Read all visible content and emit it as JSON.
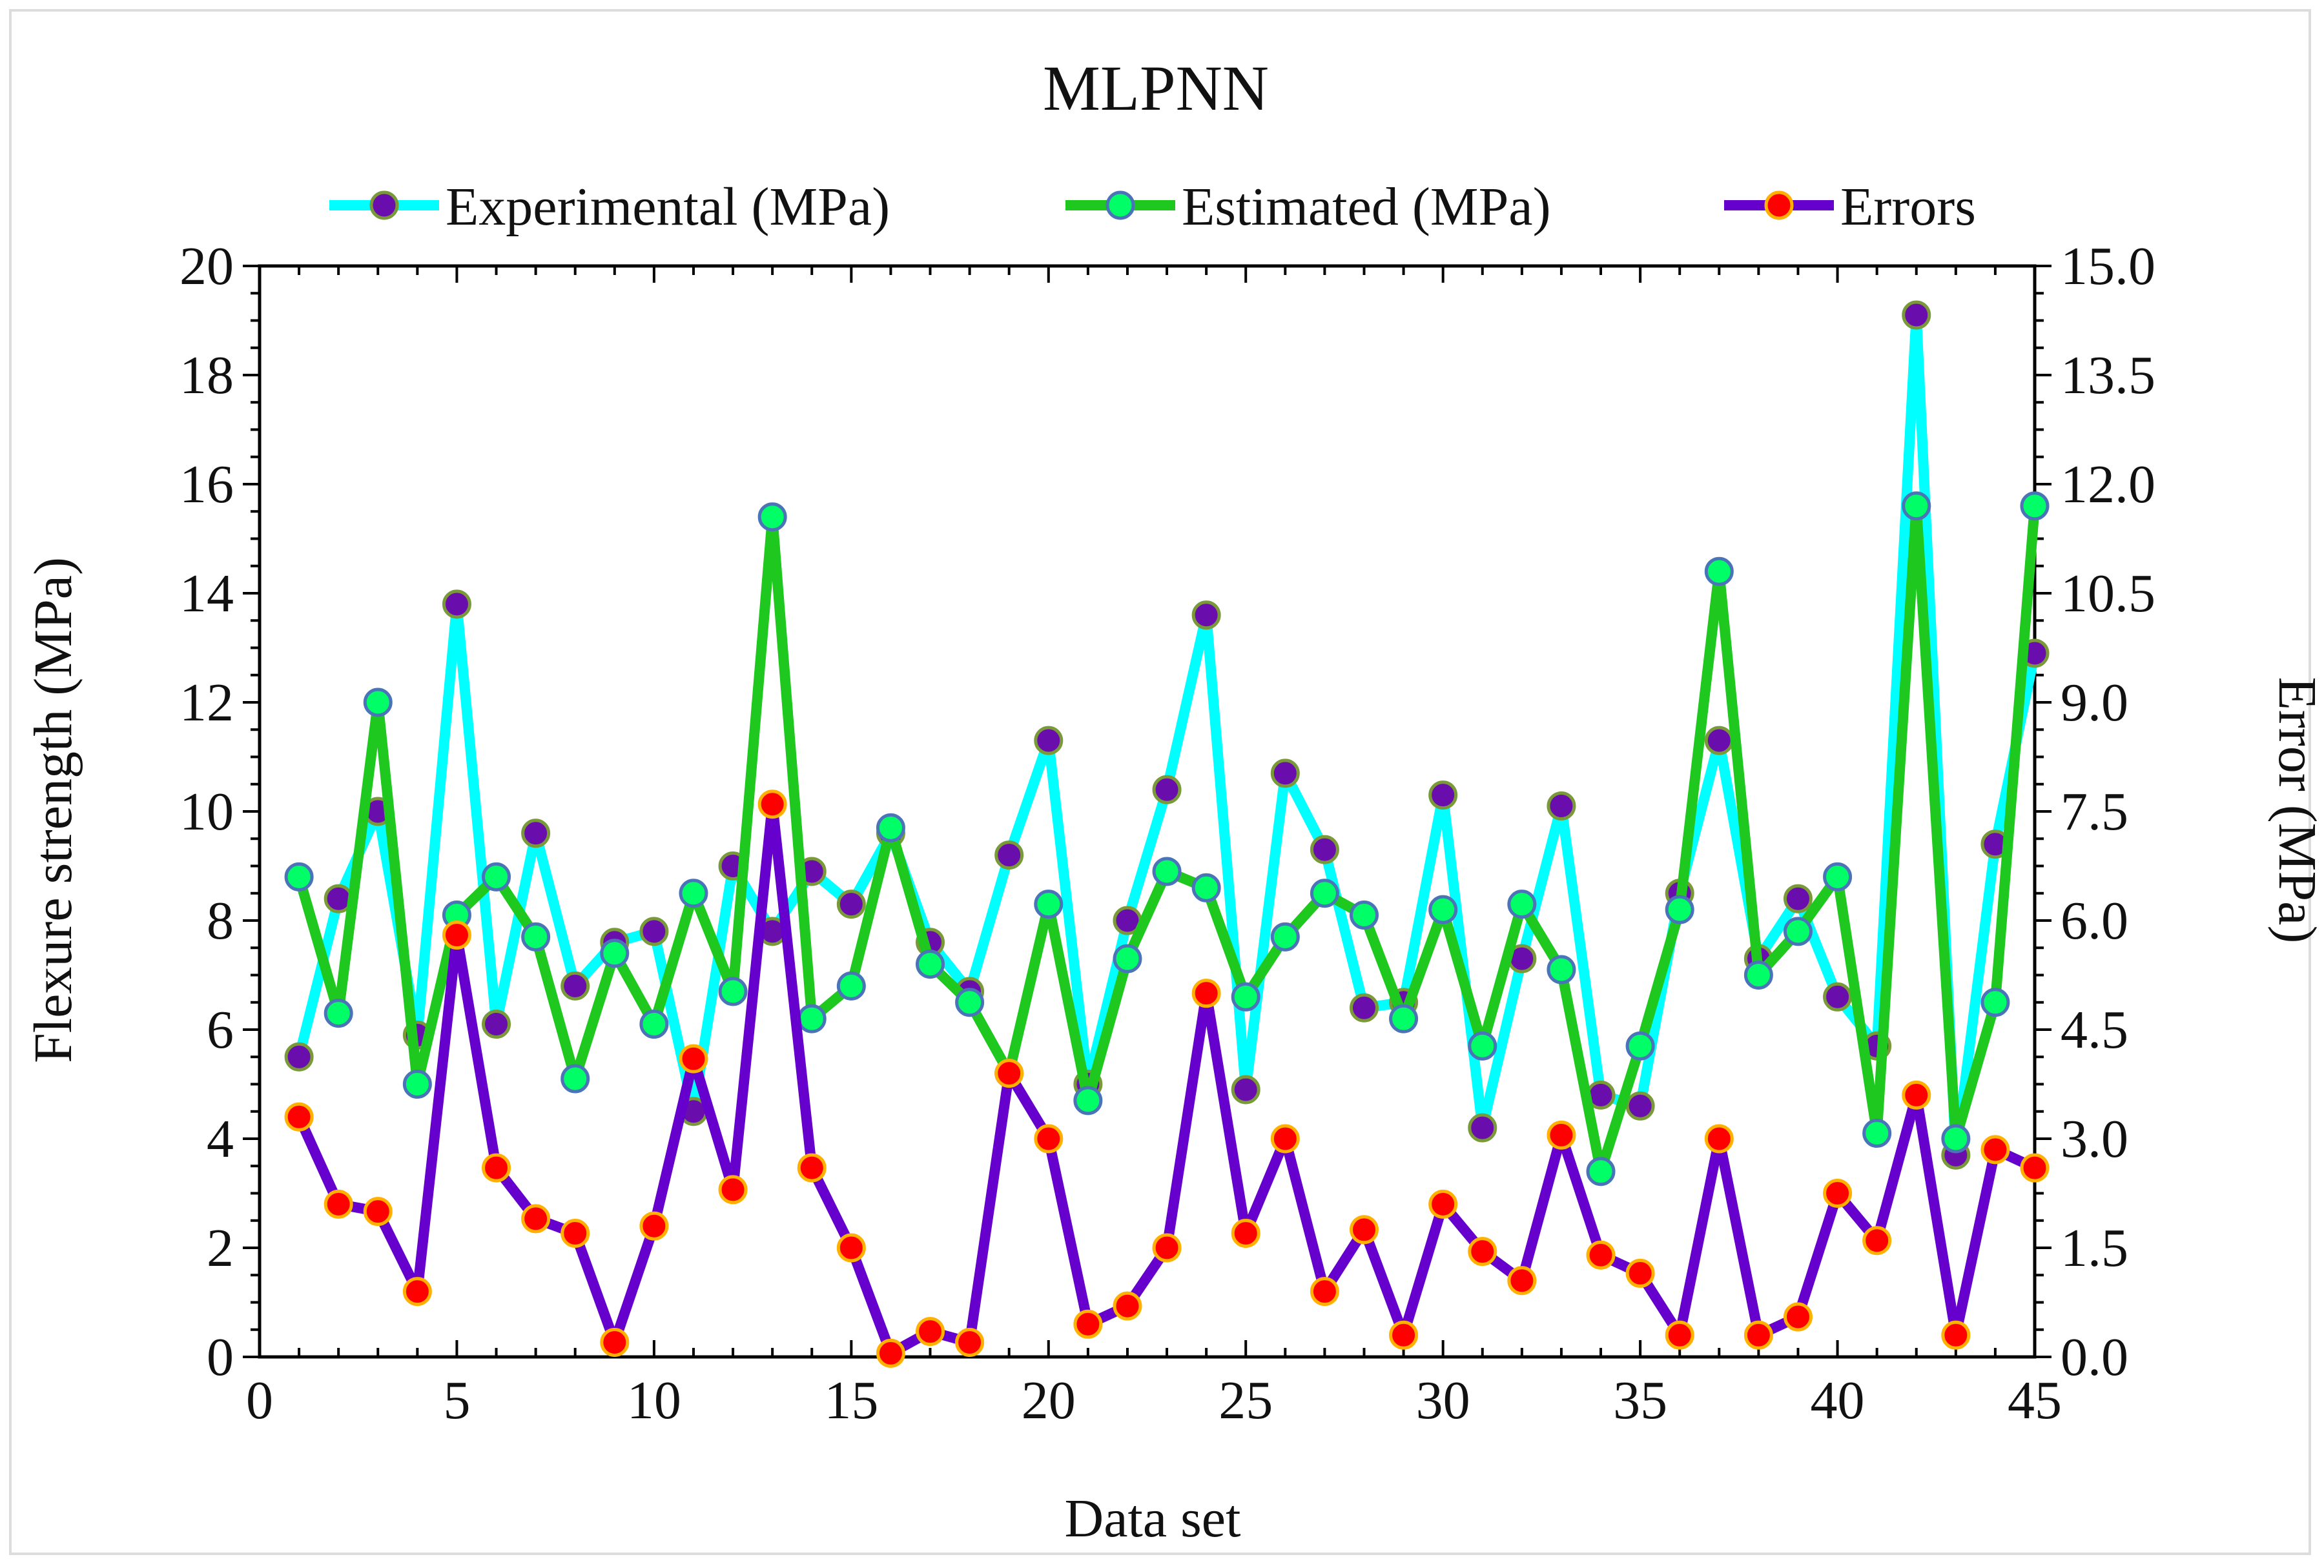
{
  "chart_data": {
    "type": "line",
    "title": "MLPNN",
    "xlabel": "Data set",
    "ylabel": "Flexure strength (MPa)",
    "y2label": "Error (MPa)",
    "xlim": [
      0,
      45
    ],
    "ylim": [
      0,
      20
    ],
    "y2lim": [
      0,
      15
    ],
    "x_ticks": [
      "0",
      "5",
      "10",
      "15",
      "20",
      "25",
      "30",
      "35",
      "40",
      "45"
    ],
    "y_ticks": [
      "0",
      "2",
      "4",
      "6",
      "8",
      "10",
      "12",
      "14",
      "16",
      "18",
      "20"
    ],
    "y2_ticks": [
      "0.0",
      "1.5",
      "3.0",
      "4.5",
      "6.0",
      "7.5",
      "9.0",
      "10.5",
      "12.0",
      "13.5",
      "15.0"
    ],
    "legend_position": "top",
    "x": [
      1,
      2,
      3,
      4,
      5,
      6,
      7,
      8,
      9,
      10,
      11,
      12,
      13,
      14,
      15,
      16,
      17,
      18,
      19,
      20,
      21,
      22,
      23,
      24,
      25,
      26,
      27,
      28,
      29,
      30,
      31,
      32,
      33,
      34,
      35,
      36,
      37,
      38,
      39,
      40,
      41,
      42,
      43,
      44,
      45
    ],
    "series": [
      {
        "name": "Experimental (MPa)",
        "axis": "left",
        "line_color": "#00ffff",
        "marker_fill": "#6a0dad",
        "marker_edge": "#7a9a3a",
        "values": [
          5.5,
          8.4,
          10.0,
          5.9,
          13.8,
          6.1,
          9.6,
          6.8,
          7.6,
          7.8,
          4.5,
          9.0,
          7.8,
          8.9,
          8.3,
          9.6,
          7.6,
          6.7,
          9.2,
          11.3,
          5.0,
          8.0,
          10.4,
          13.6,
          4.9,
          10.7,
          9.3,
          6.4,
          6.5,
          10.3,
          4.2,
          7.3,
          10.1,
          4.8,
          4.6,
          8.5,
          11.3,
          7.3,
          8.4,
          6.6,
          5.7,
          19.1,
          3.7,
          9.4,
          12.9
        ]
      },
      {
        "name": "Estimated (MPa)",
        "axis": "left",
        "line_color": "#1ec81e",
        "marker_fill": "#00ff66",
        "marker_edge": "#4b74b8",
        "values": [
          8.8,
          6.3,
          12.0,
          5.0,
          8.1,
          8.8,
          7.7,
          5.1,
          7.4,
          6.1,
          8.5,
          6.7,
          15.4,
          6.2,
          6.8,
          9.7,
          7.2,
          6.5,
          5.2,
          8.3,
          4.7,
          7.3,
          8.9,
          8.6,
          6.6,
          7.7,
          8.5,
          8.1,
          6.2,
          8.2,
          5.7,
          8.3,
          7.1,
          3.4,
          5.7,
          8.2,
          14.4,
          7.0,
          7.8,
          8.8,
          4.1,
          15.6,
          4.0,
          6.5,
          15.6
        ]
      },
      {
        "name": "Errors",
        "axis": "right",
        "line_color": "#6600cc",
        "marker_fill": "#ff0000",
        "marker_edge": "#ffb000",
        "values": [
          3.3,
          2.1,
          2.0,
          0.9,
          5.8,
          2.6,
          1.9,
          1.7,
          0.2,
          1.8,
          4.1,
          2.3,
          7.6,
          2.6,
          1.5,
          0.05,
          0.35,
          0.2,
          3.9,
          3.0,
          0.45,
          0.7,
          1.5,
          5.0,
          1.7,
          3.0,
          0.9,
          1.75,
          0.3,
          2.1,
          1.45,
          1.05,
          3.05,
          1.4,
          1.15,
          0.3,
          3.0,
          0.3,
          0.55,
          2.25,
          1.6,
          3.6,
          0.3,
          2.85,
          2.6
        ]
      }
    ]
  }
}
